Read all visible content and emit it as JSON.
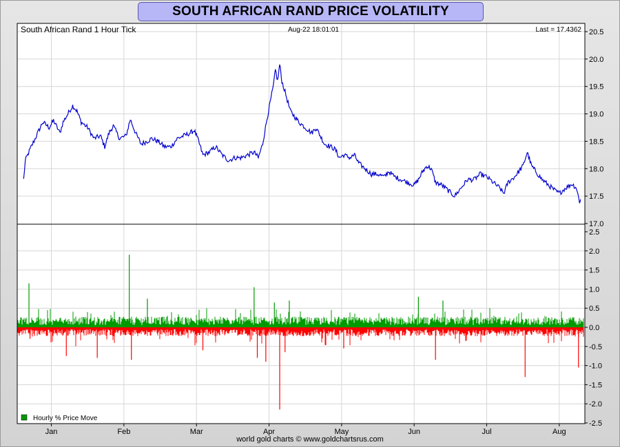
{
  "title": "SOUTH AFRICAN RAND PRICE VOLATILITY",
  "footer": "world gold charts © www.goldchartsrus.com",
  "colors": {
    "price_line": "#0000cc",
    "up_bar": "#009900",
    "down_bar": "#ff0000",
    "title_bg": "#b7b7f7"
  },
  "chart_data": [
    {
      "type": "line",
      "panel": "price",
      "label": "South African Rand 1 Hour Tick",
      "timestamp": "Aug-22  18:01:01",
      "last_label": "Last = 17.4362",
      "x_months": [
        "Jan",
        "Feb",
        "Mar",
        "Apr",
        "May",
        "Jun",
        "Jul",
        "Aug"
      ],
      "y_ticks": [
        "17.0",
        "17.5",
        "18.0",
        "18.5",
        "19.0",
        "19.5",
        "20.0",
        "20.5"
      ],
      "ylim": [
        17.0,
        20.5
      ],
      "grid": true,
      "series": [
        {
          "points": [
            [
              0.0,
              17.8
            ],
            [
              0.08,
              18.15
            ],
            [
              0.3,
              18.35
            ],
            [
              0.6,
              18.6
            ],
            [
              0.9,
              18.85
            ],
            [
              1.2,
              18.75
            ],
            [
              1.4,
              18.88
            ],
            [
              1.7,
              18.65
            ],
            [
              1.85,
              18.85
            ],
            [
              2.0,
              18.95
            ],
            [
              2.3,
              19.15
            ],
            [
              2.5,
              19.05
            ],
            [
              2.7,
              18.85
            ],
            [
              3.0,
              18.75
            ],
            [
              3.3,
              18.55
            ],
            [
              3.6,
              18.6
            ],
            [
              3.8,
              18.4
            ],
            [
              4.0,
              18.65
            ],
            [
              4.2,
              18.78
            ],
            [
              4.5,
              18.55
            ],
            [
              4.8,
              18.6
            ],
            [
              5.0,
              18.9
            ],
            [
              5.25,
              18.65
            ],
            [
              5.5,
              18.45
            ],
            [
              5.8,
              18.5
            ],
            [
              6.0,
              18.55
            ],
            [
              6.3,
              18.5
            ],
            [
              6.6,
              18.4
            ],
            [
              6.9,
              18.4
            ],
            [
              7.2,
              18.55
            ],
            [
              7.5,
              18.6
            ],
            [
              7.8,
              18.65
            ],
            [
              8.0,
              18.7
            ],
            [
              8.2,
              18.5
            ],
            [
              8.4,
              18.25
            ],
            [
              8.7,
              18.3
            ],
            [
              9.0,
              18.4
            ],
            [
              9.3,
              18.25
            ],
            [
              9.6,
              18.15
            ],
            [
              9.9,
              18.2
            ],
            [
              10.2,
              18.2
            ],
            [
              10.5,
              18.25
            ],
            [
              10.8,
              18.3
            ],
            [
              11.0,
              18.2
            ],
            [
              11.2,
              18.45
            ],
            [
              11.4,
              18.9
            ],
            [
              11.55,
              19.2
            ],
            [
              11.7,
              19.5
            ],
            [
              11.8,
              19.8
            ],
            [
              11.9,
              19.6
            ],
            [
              12.0,
              19.9
            ],
            [
              12.1,
              19.6
            ],
            [
              12.25,
              19.4
            ],
            [
              12.5,
              19.05
            ],
            [
              12.7,
              18.95
            ],
            [
              12.9,
              18.85
            ],
            [
              13.2,
              18.75
            ],
            [
              13.5,
              18.65
            ],
            [
              13.7,
              18.75
            ],
            [
              13.9,
              18.6
            ],
            [
              14.1,
              18.45
            ],
            [
              14.4,
              18.4
            ],
            [
              14.6,
              18.35
            ],
            [
              14.8,
              18.2
            ],
            [
              15.0,
              18.25
            ],
            [
              15.3,
              18.2
            ],
            [
              15.5,
              18.25
            ],
            [
              15.7,
              18.1
            ],
            [
              16.0,
              18.0
            ],
            [
              16.3,
              17.9
            ],
            [
              16.6,
              17.9
            ],
            [
              16.9,
              17.85
            ],
            [
              17.1,
              17.95
            ],
            [
              17.4,
              17.85
            ],
            [
              17.7,
              17.8
            ],
            [
              18.0,
              17.75
            ],
            [
              18.3,
              17.7
            ],
            [
              18.5,
              17.8
            ],
            [
              18.7,
              17.95
            ],
            [
              18.9,
              18.05
            ],
            [
              19.1,
              18.0
            ],
            [
              19.3,
              17.75
            ],
            [
              19.6,
              17.7
            ],
            [
              19.9,
              17.6
            ],
            [
              20.2,
              17.5
            ],
            [
              20.5,
              17.65
            ],
            [
              20.8,
              17.8
            ],
            [
              21.1,
              17.8
            ],
            [
              21.4,
              17.9
            ],
            [
              21.7,
              17.85
            ],
            [
              22.0,
              17.75
            ],
            [
              22.3,
              17.65
            ],
            [
              22.5,
              17.55
            ],
            [
              22.7,
              17.75
            ],
            [
              23.0,
              17.85
            ],
            [
              23.2,
              17.95
            ],
            [
              23.4,
              18.05
            ],
            [
              23.6,
              18.3
            ],
            [
              23.8,
              18.05
            ],
            [
              24.0,
              17.95
            ],
            [
              24.3,
              17.8
            ],
            [
              24.6,
              17.7
            ],
            [
              24.9,
              17.6
            ],
            [
              25.1,
              17.55
            ],
            [
              25.4,
              17.65
            ],
            [
              25.7,
              17.72
            ],
            [
              25.9,
              17.65
            ],
            [
              26.05,
              17.4
            ],
            [
              26.1,
              17.44
            ]
          ]
        }
      ]
    },
    {
      "type": "bar",
      "panel": "change",
      "legend": "Hourly % Price Move",
      "legend_position": "bottom-left",
      "y_ticks": [
        "-2.5",
        "-2.0",
        "-1.5",
        "-1.0",
        "-0.5",
        "0.0",
        "0.5",
        "1.0",
        "1.5",
        "2.0",
        "2.5"
      ],
      "ylim": [
        -2.5,
        2.5
      ],
      "grid": true,
      "spikes": [
        {
          "x": 0.25,
          "value": 1.15
        },
        {
          "x": 0.3,
          "value": -0.3
        },
        {
          "x": 2.0,
          "value": -0.75
        },
        {
          "x": 3.45,
          "value": -0.8
        },
        {
          "x": 4.95,
          "value": 1.9
        },
        {
          "x": 5.05,
          "value": -0.85
        },
        {
          "x": 5.8,
          "value": 0.75
        },
        {
          "x": 8.4,
          "value": -0.6
        },
        {
          "x": 10.8,
          "value": 1.05
        },
        {
          "x": 10.95,
          "value": -0.8
        },
        {
          "x": 11.35,
          "value": -0.9
        },
        {
          "x": 11.75,
          "value": 0.65
        },
        {
          "x": 12.0,
          "value": -2.15
        },
        {
          "x": 12.25,
          "value": -0.65
        },
        {
          "x": 12.45,
          "value": 0.7
        },
        {
          "x": 15.0,
          "value": -0.55
        },
        {
          "x": 18.5,
          "value": 0.8
        },
        {
          "x": 19.3,
          "value": -0.85
        },
        {
          "x": 19.65,
          "value": 0.7
        },
        {
          "x": 23.5,
          "value": -1.3
        },
        {
          "x": 26.0,
          "value": -1.05
        }
      ]
    }
  ]
}
